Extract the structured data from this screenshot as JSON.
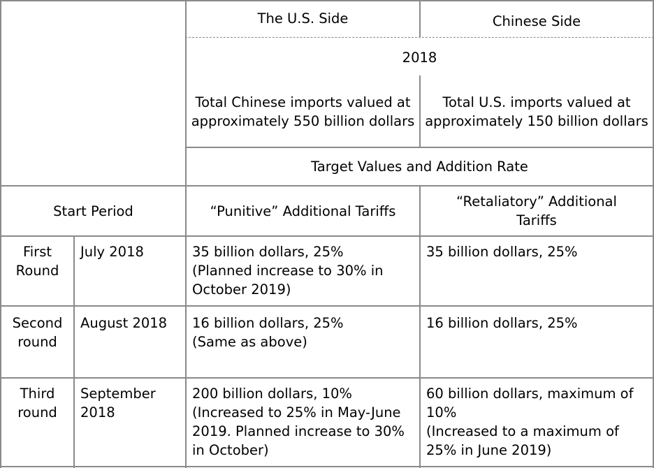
{
  "header": {
    "us_side": "The U.S. Side",
    "chinese_side": "Chinese Side",
    "year": "2018",
    "us_total": "Total Chinese imports valued at approximately 550 billion dollars",
    "cn_total": "Total U.S. imports valued at approximately 150 billion dollars",
    "target": "Target Values and Addition Rate",
    "start_period": "Start Period",
    "punitive": "“Punitive” Additional Tariffs",
    "retaliatory": "“Retaliatory” Additional Tariffs"
  },
  "rows": [
    {
      "round": "First Round",
      "date": "July 2018",
      "us": "35 billion dollars, 25%\n(Planned increase to 30% in October 2019)",
      "cn": "35 billion dollars, 25%"
    },
    {
      "round": "Second round",
      "date": "August 2018",
      "us": "16 billion dollars, 25%\n(Same as above)",
      "cn": "16 billion dollars, 25%"
    },
    {
      "round": "Third round",
      "date": "September 2018",
      "us": "200 billion dollars, 10%\n(Increased to 25% in May-June 2019. Planned increase to 30% in October)",
      "cn": "60 billion dollars, maximum of 10%\n(Increased to a maximum of 25% in June 2019)"
    }
  ]
}
